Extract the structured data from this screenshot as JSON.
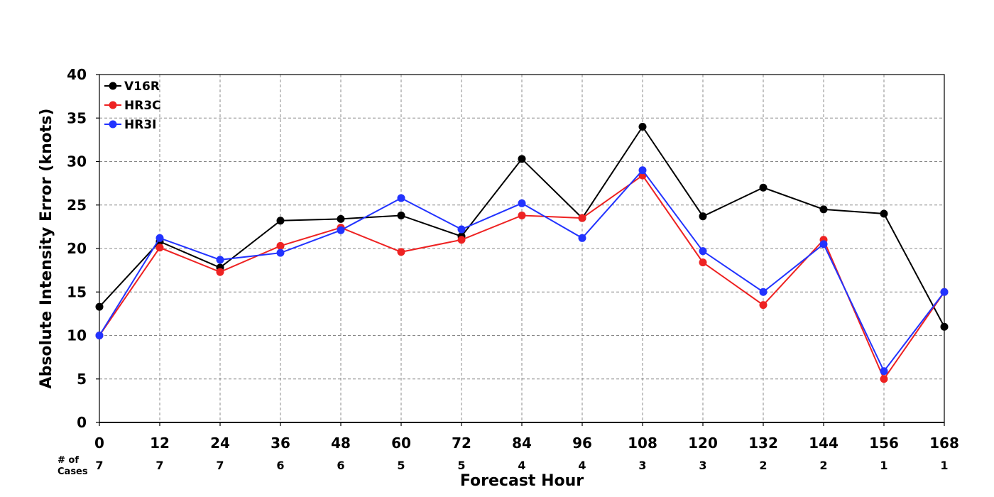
{
  "chart_data": {
    "type": "line",
    "title": "",
    "xlabel": "Forecast Hour",
    "ylabel": "Absolute Intensity Error (knots)",
    "x": [
      0,
      12,
      24,
      36,
      48,
      60,
      72,
      84,
      96,
      108,
      120,
      132,
      144,
      156,
      168
    ],
    "xlim": [
      0,
      168
    ],
    "ylim": [
      0,
      40
    ],
    "yticks": [
      0,
      5,
      10,
      15,
      20,
      25,
      30,
      35,
      40
    ],
    "grid": true,
    "legend_position": "top-left",
    "cases_label_line1": "# of",
    "cases_label_line2": "Cases",
    "cases": [
      7,
      7,
      7,
      6,
      6,
      5,
      5,
      4,
      4,
      3,
      3,
      2,
      2,
      1,
      1
    ],
    "series": [
      {
        "name": "V16R",
        "color": "#000000",
        "values": [
          13.3,
          20.8,
          17.8,
          23.2,
          23.4,
          23.8,
          21.4,
          30.3,
          23.5,
          34.0,
          23.7,
          27.0,
          24.5,
          24.0,
          11.0
        ]
      },
      {
        "name": "HR3C",
        "color": "#ee2222",
        "values": [
          10.0,
          20.1,
          17.3,
          20.3,
          22.4,
          19.6,
          21.0,
          23.8,
          23.5,
          28.4,
          18.4,
          13.5,
          21.0,
          5.0,
          15.0
        ]
      },
      {
        "name": "HR3I",
        "color": "#2233ff",
        "values": [
          10.0,
          21.2,
          18.7,
          19.5,
          22.1,
          25.8,
          22.2,
          25.2,
          21.2,
          29.0,
          19.7,
          15.0,
          20.5,
          5.9,
          15.0
        ]
      }
    ]
  }
}
